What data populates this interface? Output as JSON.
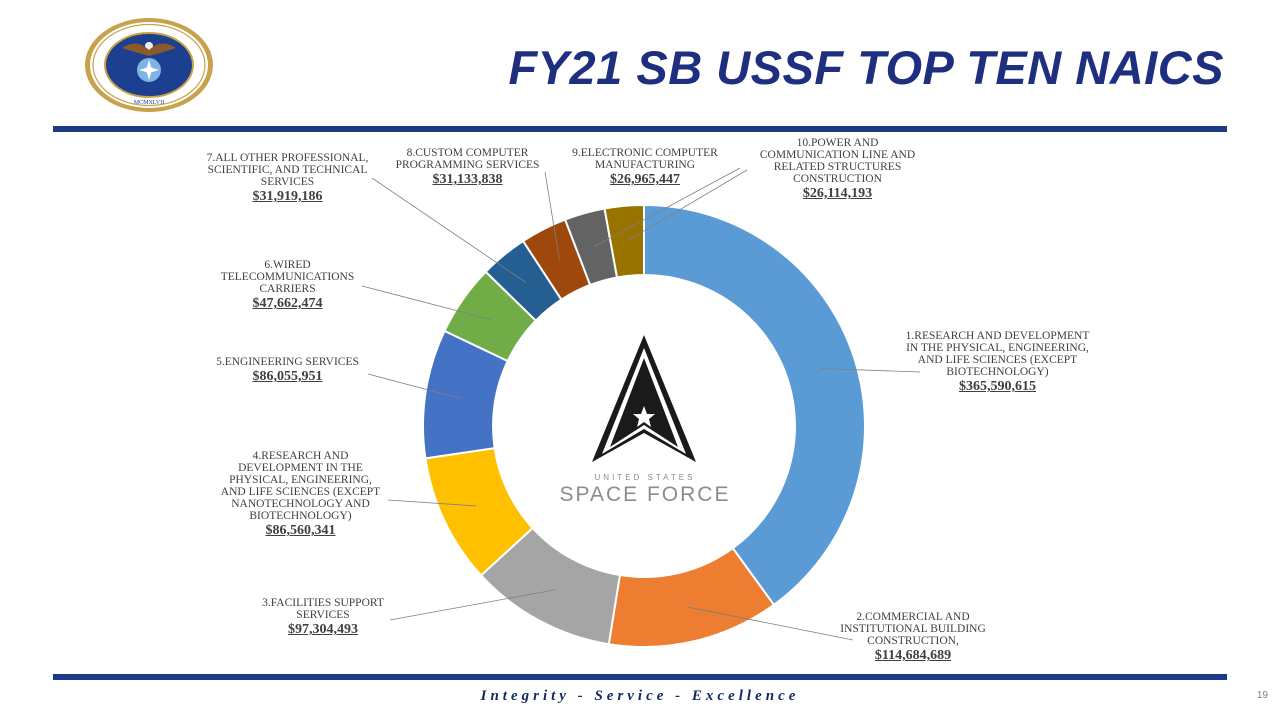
{
  "slide": {
    "title": "FY21 SB USSF TOP TEN NAICS",
    "motto": "Integrity - Service - Excellence",
    "page_number": "19"
  },
  "seal": {
    "text": "DEPARTMENT OF THE AIR FORCE · UNITED STATES OF AMERICA",
    "numeral": "MCMXLVII"
  },
  "center_logo": {
    "subtitle": "UNITED STATES",
    "name": "SPACE FORCE"
  },
  "colors": {
    "title": "#1f2f7f",
    "rule": "#1c3a86"
  },
  "chart_data": {
    "type": "pie",
    "donut": true,
    "start": "12 o'clock",
    "direction": "clockwise",
    "slices": [
      {
        "rank": 1,
        "name": "1.RESEARCH AND DEVELOPMENT IN THE PHYSICAL, ENGINEERING, AND LIFE SCIENCES (EXCEPT BIOTECHNOLOGY)",
        "value": 365590615,
        "value_label": "$365,590,615",
        "color": "#5b9bd5"
      },
      {
        "rank": 2,
        "name": "2.COMMERCIAL AND INSTITUTIONAL BUILDING CONSTRUCTION,",
        "value": 114684689,
        "value_label": "$114,684,689",
        "color": "#ed7d31"
      },
      {
        "rank": 3,
        "name": "3.FACILITIES SUPPORT SERVICES",
        "value": 97304493,
        "value_label": "$97,304,493",
        "color": "#a5a5a5"
      },
      {
        "rank": 4,
        "name": "4.RESEARCH AND DEVELOPMENT IN THE PHYSICAL, ENGINEERING, AND LIFE SCIENCES (EXCEPT NANOTECHNOLOGY AND BIOTECHNOLOGY)",
        "value": 86560341,
        "value_label": "$86,560,341",
        "color": "#ffc000"
      },
      {
        "rank": 5,
        "name": "5.ENGINEERING SERVICES",
        "value": 86055951,
        "value_label": "$86,055,951",
        "color": "#4472c4"
      },
      {
        "rank": 6,
        "name": "6.WIRED TELECOMMUNICATIONS CARRIERS",
        "value": 47662474,
        "value_label": "$47,662,474",
        "color": "#70ad47"
      },
      {
        "rank": 7,
        "name": "7.ALL OTHER PROFESSIONAL, SCIENTIFIC, AND TECHNICAL SERVICES",
        "value": 31919186,
        "value_label": "$31,919,186",
        "color": "#255e91"
      },
      {
        "rank": 8,
        "name": "8.CUSTOM COMPUTER PROGRAMMING SERVICES",
        "value": 31133838,
        "value_label": "$31,133,838",
        "color": "#9e480e"
      },
      {
        "rank": 9,
        "name": "9.ELECTRONIC COMPUTER MANUFACTURING",
        "value": 26965447,
        "value_label": "$26,965,447",
        "color": "#636363"
      },
      {
        "rank": 10,
        "name": "10.POWER AND COMMUNICATION LINE AND RELATED STRUCTURES CONSTRUCTION",
        "value": 26114193,
        "value_label": "$26,114,193",
        "color": "#997300"
      }
    ]
  }
}
